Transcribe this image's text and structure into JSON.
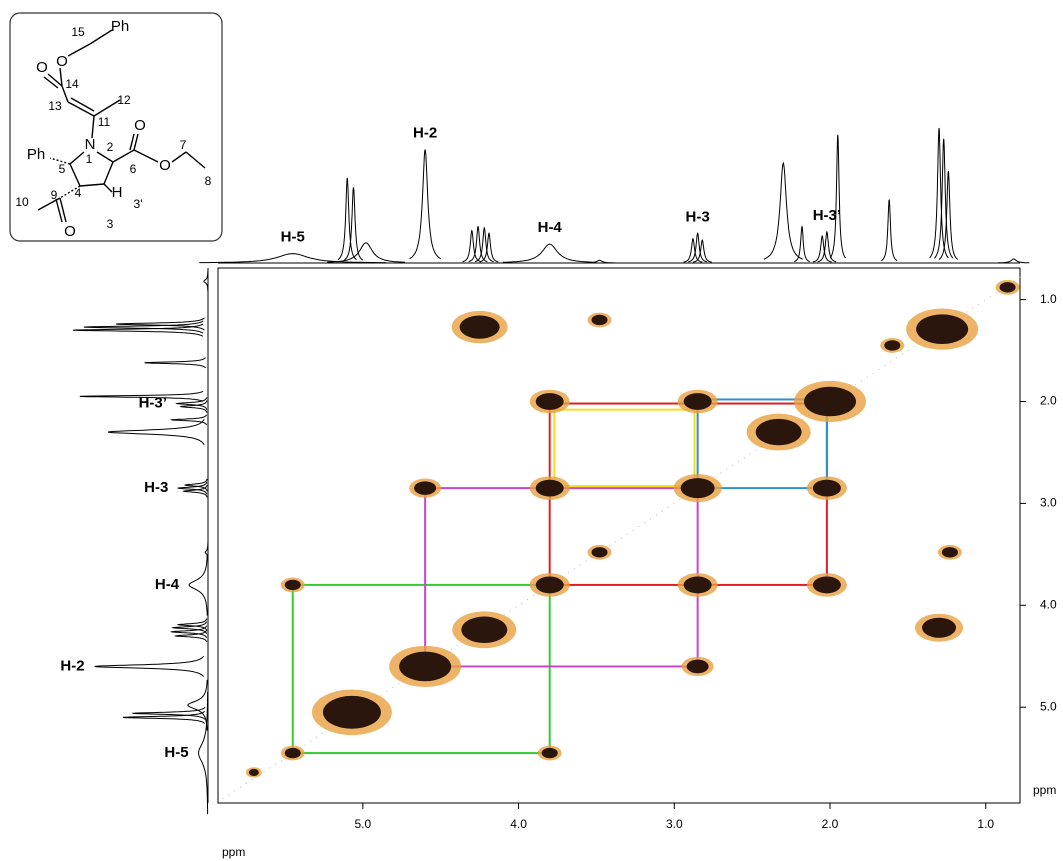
{
  "structure": {
    "labels": [
      "Ph",
      "15",
      "O",
      "O",
      "14",
      "13",
      "12",
      "11",
      "N",
      "1",
      "2",
      "Ph",
      "5",
      "6",
      "O",
      "O",
      "7",
      "8",
      "9",
      "4",
      "H",
      "3'",
      "10",
      "O",
      "3"
    ]
  },
  "chart_data": {
    "type": "cosy",
    "x_label": "ppm",
    "y_label": "ppm",
    "xlim": [
      5.93,
      0.78
    ],
    "ylim": [
      0.69,
      5.94
    ],
    "xticks": [
      {
        "value": 5,
        "label": "5.0"
      },
      {
        "value": 4,
        "label": "4.0"
      },
      {
        "value": 3,
        "label": "3.0"
      },
      {
        "value": 2,
        "label": "2.0"
      },
      {
        "value": 1,
        "label": "1.0"
      }
    ],
    "yticks": [
      {
        "value": 1,
        "label": "1.0"
      },
      {
        "value": 2,
        "label": "2.0"
      },
      {
        "value": 3,
        "label": "3.0"
      },
      {
        "value": 4,
        "label": "4.0"
      },
      {
        "value": 5,
        "label": "5.0"
      }
    ],
    "spectrum": {
      "ppm": [
        5.45,
        5.1,
        5.06,
        4.98,
        4.6,
        4.3,
        4.26,
        4.22,
        4.19,
        3.8,
        3.48,
        2.88,
        2.85,
        2.82,
        2.3,
        2.18,
        2.05,
        2.02,
        1.95,
        1.62,
        1.3,
        1.27,
        1.24,
        0.82
      ],
      "height": [
        7,
        63,
        56,
        15,
        84,
        24,
        27,
        26,
        22,
        14,
        2,
        18,
        22,
        17,
        74,
        27,
        20,
        23,
        95,
        47,
        100,
        92,
        68,
        3
      ],
      "width": [
        0.12,
        0.012,
        0.012,
        0.05,
        0.02,
        0.012,
        0.012,
        0.012,
        0.012,
        0.06,
        0.02,
        0.012,
        0.012,
        0.012,
        0.025,
        0.01,
        0.012,
        0.012,
        0.01,
        0.01,
        0.012,
        0.012,
        0.012,
        0.02
      ]
    },
    "annotations": [
      {
        "text": "H-5",
        "ppm": 5.45
      },
      {
        "text": "H-2",
        "ppm": 4.6
      },
      {
        "text": "H-4",
        "ppm": 3.8
      },
      {
        "text": "H-3",
        "ppm": 2.85
      },
      {
        "text": "H-3’",
        "ppm": 2.02
      }
    ],
    "cross_peaks": {
      "x": [
        5.7,
        5.45,
        5.07,
        4.6,
        4.22,
        3.8,
        3.48,
        2.85,
        2.33,
        2.0,
        1.6,
        1.28,
        0.86,
        3.8,
        2.85,
        4.6,
        3.8,
        2.02,
        5.45,
        2.85,
        2.02,
        2.85,
        3.8,
        4.25,
        3.48,
        1.3,
        1.23
      ],
      "y": [
        5.64,
        5.45,
        5.05,
        4.6,
        4.24,
        3.8,
        3.48,
        2.85,
        2.3,
        2.0,
        1.45,
        1.29,
        0.88,
        2.0,
        2.0,
        2.85,
        2.85,
        2.85,
        3.8,
        3.8,
        3.8,
        4.6,
        5.45,
        1.27,
        1.2,
        4.22,
        3.48
      ],
      "size": [
        1,
        2,
        9,
        8,
        7,
        4,
        2,
        5,
        7,
        8,
        2,
        8,
        2,
        4,
        4,
        3,
        4,
        4,
        2,
        4,
        4,
        3,
        2,
        6,
        2,
        5,
        2
      ]
    },
    "correlations": [
      {
        "color": "#33cc33",
        "x": [
          5.45,
          3.8
        ],
        "y": [
          3.8,
          5.45
        ]
      },
      {
        "color": "#cc44cc",
        "x": [
          4.6,
          2.85
        ],
        "y": [
          2.85,
          4.6
        ]
      },
      {
        "color": "#e02020",
        "x": [
          3.8,
          2.02
        ],
        "y": [
          2.02,
          3.8
        ]
      },
      {
        "color": "#2f8fd0",
        "x": [
          2.85,
          2.02
        ],
        "y": [
          1.98,
          2.85
        ]
      },
      {
        "color": "#f0e020",
        "x": [
          3.77,
          2.87
        ],
        "y": [
          2.08,
          2.83
        ]
      }
    ]
  }
}
